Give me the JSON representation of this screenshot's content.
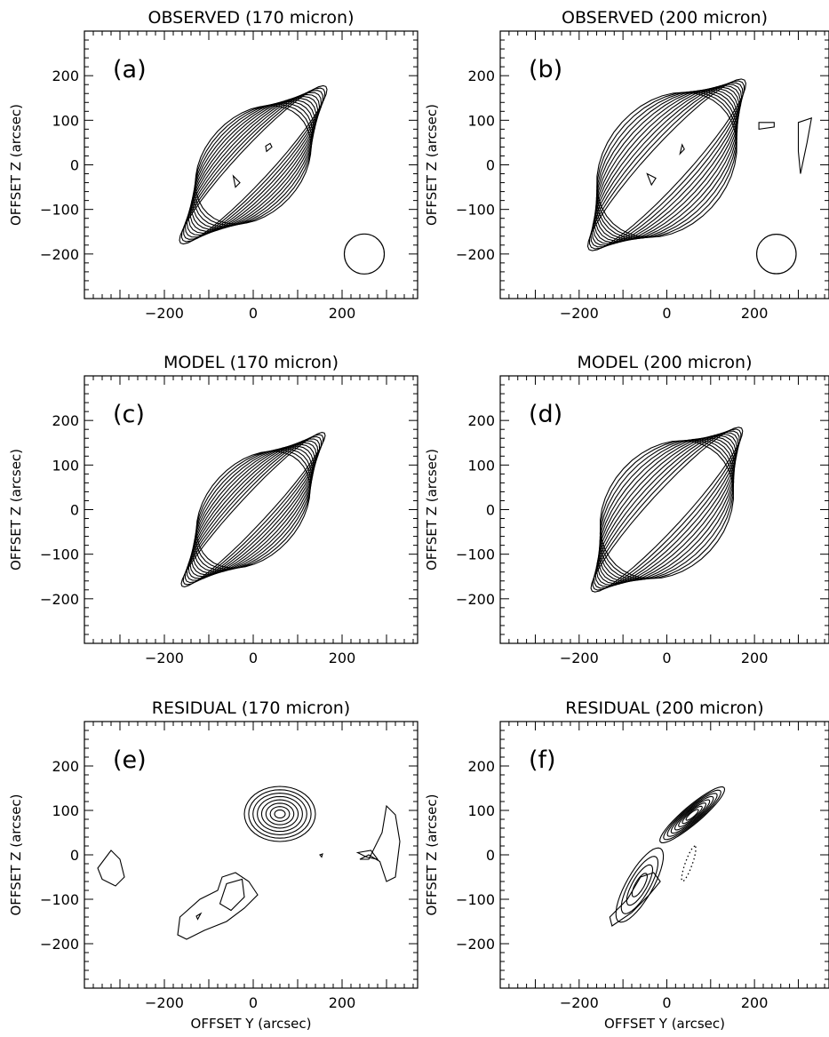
{
  "figure": {
    "colors": {
      "ink": "#000000",
      "background": "#ffffff"
    },
    "contour_note": "solid = positive contour levels; dotted = negative level in residual (f)"
  },
  "chart_data": [
    {
      "type": "contour",
      "panel": "a",
      "title": "OBSERVED (170 micron)",
      "xlabel": "",
      "ylabel": "OFFSET Z (arcsec)",
      "xlim": [
        -380,
        370
      ],
      "ylim": [
        -300,
        300
      ],
      "xticks": [
        -200,
        0,
        200
      ],
      "yticks": [
        -200,
        -100,
        0,
        100,
        200
      ],
      "beam": {
        "center": [
          250,
          -200
        ],
        "radius": 45
      },
      "features": [
        {
          "kind": "ellipse",
          "center": [
            0,
            0
          ],
          "axes": [
            [
              240,
              38
            ],
            [
              150,
              110
            ]
          ],
          "angle": 47,
          "levels": 12
        },
        {
          "kind": "poly",
          "points": [
            [
              30,
              30
            ],
            [
              42,
              40
            ],
            [
              38,
              48
            ],
            [
              28,
              42
            ]
          ]
        },
        {
          "kind": "poly",
          "points": [
            [
              -40,
              -50
            ],
            [
              -30,
              -40
            ],
            [
              -45,
              -25
            ]
          ]
        }
      ]
    },
    {
      "type": "contour",
      "panel": "b",
      "title": "OBSERVED (200 micron)",
      "xlabel": "",
      "ylabel": "OFFSET Z (arcsec)",
      "xlim": [
        -380,
        370
      ],
      "ylim": [
        -300,
        300
      ],
      "xticks": [
        -200,
        0,
        200
      ],
      "yticks": [
        -200,
        -100,
        0,
        100,
        200
      ],
      "beam": {
        "center": [
          250,
          -200
        ],
        "radius": 45
      },
      "features": [
        {
          "kind": "ellipse",
          "center": [
            0,
            0
          ],
          "axes": [
            [
              260,
              45
            ],
            [
              180,
              140
            ]
          ],
          "angle": 47,
          "levels": 12
        },
        {
          "kind": "poly",
          "points": [
            [
              210,
              95
            ],
            [
              245,
              95
            ],
            [
              245,
              85
            ],
            [
              210,
              80
            ]
          ]
        },
        {
          "kind": "poly",
          "points": [
            [
              300,
              95
            ],
            [
              330,
              105
            ],
            [
              320,
              50
            ],
            [
              305,
              -20
            ],
            [
              300,
              30
            ]
          ]
        },
        {
          "kind": "poly",
          "points": [
            [
              30,
              25
            ],
            [
              40,
              35
            ],
            [
              35,
              45
            ]
          ]
        },
        {
          "kind": "poly",
          "points": [
            [
              -35,
              -45
            ],
            [
              -25,
              -30
            ],
            [
              -45,
              -20
            ]
          ]
        }
      ]
    },
    {
      "type": "contour",
      "panel": "c",
      "title": "MODEL (170 micron)",
      "xlabel": "",
      "ylabel": "OFFSET Z (arcsec)",
      "xlim": [
        -380,
        370
      ],
      "ylim": [
        -300,
        300
      ],
      "xticks": [
        -200,
        0,
        200
      ],
      "yticks": [
        -200,
        -100,
        0,
        100,
        200
      ],
      "features": [
        {
          "kind": "ellipse",
          "center": [
            0,
            0
          ],
          "axes": [
            [
              235,
              32
            ],
            [
              150,
              105
            ]
          ],
          "angle": 47,
          "levels": 12
        }
      ]
    },
    {
      "type": "contour",
      "panel": "d",
      "title": "MODEL (200 micron)",
      "xlabel": "",
      "ylabel": "OFFSET Z (arcsec)",
      "xlim": [
        -380,
        370
      ],
      "ylim": [
        -300,
        300
      ],
      "xticks": [
        -200,
        0,
        200
      ],
      "yticks": [
        -200,
        -100,
        0,
        100,
        200
      ],
      "features": [
        {
          "kind": "ellipse",
          "center": [
            0,
            0
          ],
          "axes": [
            [
              250,
              40
            ],
            [
              170,
              135
            ]
          ],
          "angle": 47,
          "levels": 12
        }
      ]
    },
    {
      "type": "contour",
      "panel": "e",
      "title": "RESIDUAL (170 micron)",
      "xlabel": "OFFSET Y (arcsec)",
      "ylabel": "OFFSET Z (arcsec)",
      "xlim": [
        -380,
        370
      ],
      "ylim": [
        -300,
        300
      ],
      "xticks": [
        -200,
        0,
        200
      ],
      "yticks": [
        -200,
        -100,
        0,
        100,
        200
      ],
      "features": [
        {
          "kind": "ellipse",
          "center": [
            60,
            92
          ],
          "axes": [
            [
              80,
              62
            ],
            [
              12,
              9
            ]
          ],
          "angle": 0,
          "levels": 8
        },
        {
          "kind": "poly",
          "points": [
            [
              -350,
              -30
            ],
            [
              -320,
              10
            ],
            [
              -300,
              -10
            ],
            [
              -290,
              -50
            ],
            [
              -310,
              -70
            ],
            [
              -340,
              -55
            ]
          ]
        },
        {
          "kind": "poly",
          "points": [
            [
              -170,
              -180
            ],
            [
              -165,
              -140
            ],
            [
              -120,
              -100
            ],
            [
              -80,
              -80
            ],
            [
              -70,
              -50
            ],
            [
              -40,
              -40
            ],
            [
              -10,
              -60
            ],
            [
              10,
              -90
            ],
            [
              -20,
              -120
            ],
            [
              -60,
              -150
            ],
            [
              -110,
              -170
            ],
            [
              -150,
              -190
            ]
          ]
        },
        {
          "kind": "poly",
          "points": [
            [
              -75,
              -110
            ],
            [
              -60,
              -65
            ],
            [
              -25,
              -55
            ],
            [
              -20,
              -95
            ],
            [
              -50,
              -125
            ]
          ]
        },
        {
          "kind": "poly",
          "points": [
            [
              240,
              -10
            ],
            [
              260,
              0
            ],
            [
              285,
              -15
            ],
            [
              300,
              -60
            ],
            [
              320,
              -50
            ],
            [
              330,
              30
            ],
            [
              320,
              90
            ],
            [
              300,
              110
            ],
            [
              290,
              50
            ],
            [
              260,
              -10
            ]
          ]
        },
        {
          "kind": "poly",
          "points": [
            [
              235,
              5
            ],
            [
              265,
              10
            ],
            [
              280,
              -10
            ],
            [
              255,
              -5
            ]
          ]
        },
        {
          "kind": "poly",
          "points": [
            [
              -128,
              -138
            ],
            [
              -118,
              -132
            ],
            [
              -125,
              -145
            ]
          ]
        },
        {
          "kind": "poly",
          "points": [
            [
              150,
              0
            ],
            [
              156,
              2
            ],
            [
              154,
              -5
            ]
          ]
        }
      ]
    },
    {
      "type": "contour",
      "panel": "f",
      "title": "RESIDUAL (200 micron)",
      "xlabel": "OFFSET Y (arcsec)",
      "ylabel": "OFFSET Z (arcsec)",
      "xlim": [
        -380,
        370
      ],
      "ylim": [
        -300,
        300
      ],
      "xticks": [
        -200,
        0,
        200
      ],
      "yticks": [
        -200,
        -100,
        0,
        100,
        200
      ],
      "features": [
        {
          "kind": "ellipse",
          "center": [
            58,
            90
          ],
          "axes": [
            [
              95,
              20
            ],
            [
              18,
              5
            ]
          ],
          "angle": 40,
          "levels": 8
        },
        {
          "kind": "ellipse",
          "center": [
            -62,
            -68
          ],
          "axes": [
            [
              95,
              30
            ],
            [
              30,
              10
            ]
          ],
          "angle": 60,
          "levels": 4
        },
        {
          "kind": "poly",
          "points": [
            [
              -125,
              -160
            ],
            [
              -80,
              -130
            ],
            [
              -40,
              -90
            ],
            [
              -15,
              -60
            ],
            [
              -30,
              -40
            ],
            [
              -60,
              -50
            ],
            [
              -90,
              -100
            ],
            [
              -130,
              -140
            ]
          ]
        },
        {
          "kind": "ellipse",
          "center": [
            50,
            -20
          ],
          "axes": [
            [
              42,
              8
            ],
            [
              42,
              8
            ]
          ],
          "angle": 70,
          "levels": 1,
          "dotted": true
        }
      ]
    }
  ]
}
